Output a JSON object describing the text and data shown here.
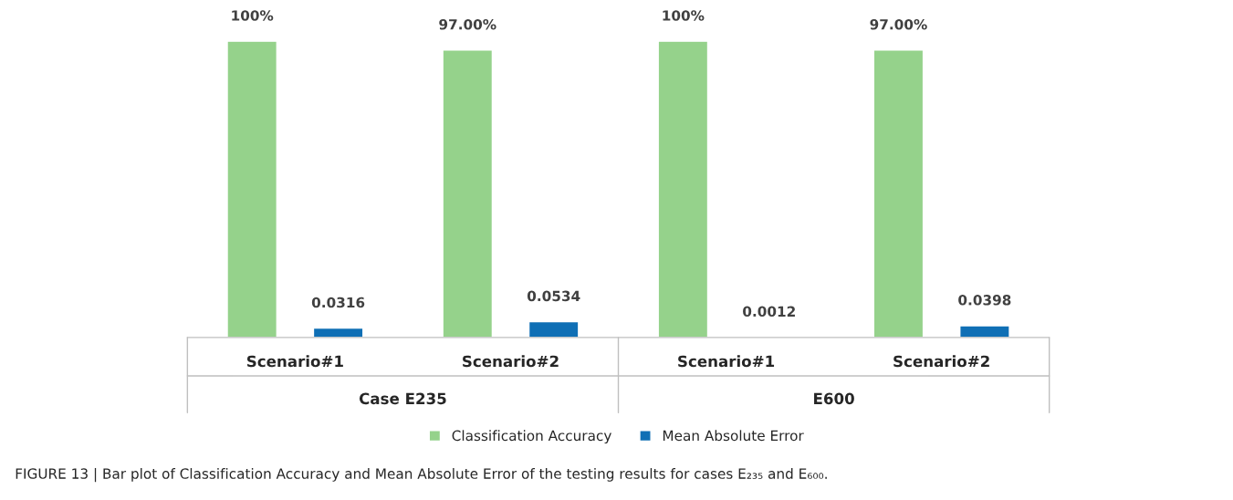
{
  "chart_data": {
    "type": "bar",
    "categories": [
      "Scenario#1",
      "Scenario#2",
      "Scenario#1",
      "Scenario#2"
    ],
    "series": [
      {
        "name": "Classification Accuracy",
        "color": "#95d28b",
        "values": [
          1.0,
          0.97,
          1.0,
          0.97
        ],
        "value_labels": [
          "100%",
          "97.00%",
          "100%",
          "97.00%"
        ]
      },
      {
        "name": "Mean Absolute Error",
        "color": "#0f6fb5",
        "values": [
          0.0316,
          0.0534,
          0.0012,
          0.0398
        ],
        "value_labels": [
          "0.0316",
          "0.0534",
          "0.0012",
          "0.0398"
        ]
      }
    ],
    "annotations": [
      "Case E235",
      "E600",
      "FIGURE 13 | Bar plot of Classification Accuracy and Mean Absolute Error of the testing results for cases E₂₃₅ and E₆₀₀."
    ],
    "legend": "bottom",
    "grid": false
  }
}
